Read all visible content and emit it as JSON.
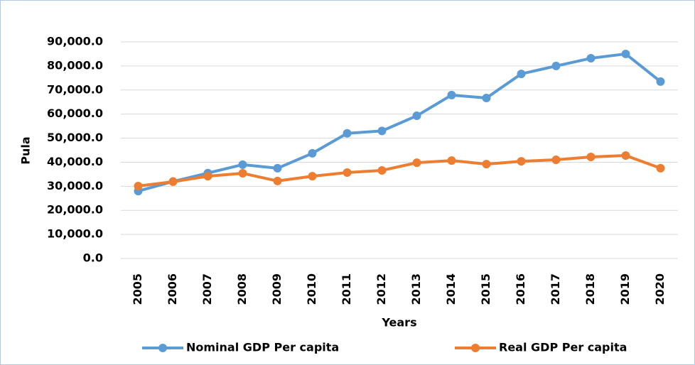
{
  "chart_data": {
    "type": "line",
    "y_label": "Pula",
    "x_label": "Years",
    "categories": [
      "2005",
      "2006",
      "2007",
      "2008",
      "2009",
      "2010",
      "2011",
      "2012",
      "2013",
      "2014",
      "2015",
      "2016",
      "2017",
      "2018",
      "2019",
      "2020"
    ],
    "series": [
      {
        "name": "Nominal GDP Per capita",
        "color": "#5b9bd5",
        "values": [
          28000,
          32000,
          35500,
          39000,
          37500,
          43700,
          52000,
          53000,
          59300,
          67900,
          66700,
          76700,
          80000,
          83200,
          85000,
          73500
        ]
      },
      {
        "name": "Real GDP Per capita",
        "color": "#ed7d31",
        "values": [
          30100,
          31900,
          34200,
          35400,
          32200,
          34200,
          35700,
          36600,
          39800,
          40700,
          39200,
          40400,
          41000,
          42200,
          42800,
          37500
        ]
      }
    ],
    "ylim": [
      0,
      90000
    ],
    "yticks": [
      {
        "value": 0,
        "label": "0.0"
      },
      {
        "value": 10000,
        "label": "10,000.0"
      },
      {
        "value": 20000,
        "label": "20,000.0"
      },
      {
        "value": 30000,
        "label": "30,000.0"
      },
      {
        "value": 40000,
        "label": "40,000.0"
      },
      {
        "value": 50000,
        "label": "50,000.0"
      },
      {
        "value": 60000,
        "label": "60,000.0"
      },
      {
        "value": 70000,
        "label": "70,000.0"
      },
      {
        "value": 80000,
        "label": "80,000.0"
      },
      {
        "value": 90000,
        "label": "90,000.0"
      }
    ],
    "grid": true,
    "legend": "bottom"
  }
}
